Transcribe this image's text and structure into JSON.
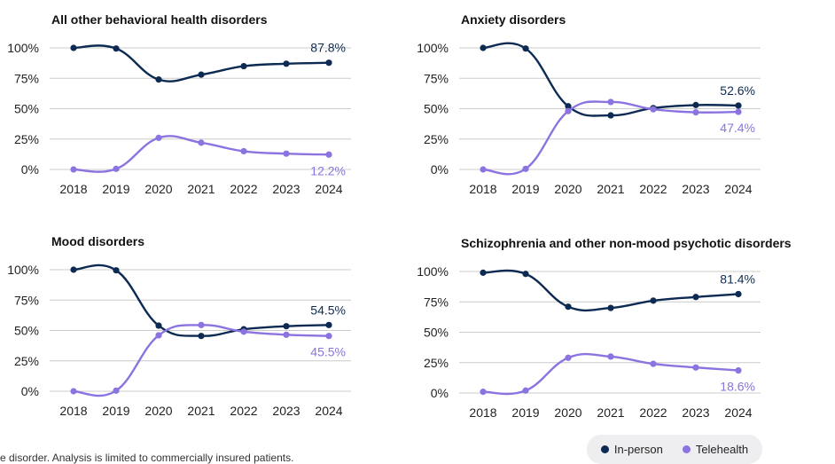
{
  "colors": {
    "in_person": "#0d2b52",
    "telehealth": "#8b73e0",
    "grid": "#cccccc"
  },
  "legend": {
    "in_person": "In-person",
    "telehealth": "Telehealth"
  },
  "footnote": "e disorder. Analysis is limited to commercially insured patients.",
  "chart_data": [
    {
      "type": "line",
      "title": "All other behavioral health disorders",
      "x": [
        "2018",
        "2019",
        "2020",
        "2021",
        "2022",
        "2023",
        "2024"
      ],
      "y_ticks": [
        "100%",
        "75%",
        "50%",
        "25%",
        "0%"
      ],
      "ylim": [
        0,
        100
      ],
      "series": [
        {
          "name": "In-person",
          "values": [
            100,
            99.5,
            74,
            78,
            85,
            87,
            87.8
          ],
          "end_label": "87.8%"
        },
        {
          "name": "Telehealth",
          "values": [
            0,
            0.5,
            26,
            22,
            15,
            13,
            12.2
          ],
          "end_label": "12.2%"
        }
      ]
    },
    {
      "type": "line",
      "title": "Anxiety disorders",
      "x": [
        "2018",
        "2019",
        "2020",
        "2021",
        "2022",
        "2023",
        "2024"
      ],
      "y_ticks": [
        "100%",
        "75%",
        "50%",
        "25%",
        "0%"
      ],
      "ylim": [
        0,
        100
      ],
      "series": [
        {
          "name": "In-person",
          "values": [
            100,
            99.5,
            52,
            44.5,
            50.5,
            53,
            52.6
          ],
          "end_label": "52.6%"
        },
        {
          "name": "Telehealth",
          "values": [
            0,
            0.5,
            48,
            55.5,
            49.5,
            47,
            47.4
          ],
          "end_label": "47.4%"
        }
      ]
    },
    {
      "type": "line",
      "title": "Mood disorders",
      "x": [
        "2018",
        "2019",
        "2020",
        "2021",
        "2022",
        "2023",
        "2024"
      ],
      "y_ticks": [
        "100%",
        "75%",
        "50%",
        "25%",
        "0%"
      ],
      "ylim": [
        0,
        100
      ],
      "series": [
        {
          "name": "In-person",
          "values": [
            100,
            99.5,
            54,
            45.5,
            51,
            53.5,
            54.5
          ],
          "end_label": "54.5%"
        },
        {
          "name": "Telehealth",
          "values": [
            0,
            0.5,
            46,
            54.5,
            49,
            46.5,
            45.5
          ],
          "end_label": "45.5%"
        }
      ]
    },
    {
      "type": "line",
      "title": "Schizophrenia and other non-mood psychotic disorders",
      "x": [
        "2018",
        "2019",
        "2020",
        "2021",
        "2022",
        "2023",
        "2024"
      ],
      "y_ticks": [
        "100%",
        "75%",
        "50%",
        "25%",
        "0%"
      ],
      "ylim": [
        0,
        100
      ],
      "series": [
        {
          "name": "In-person",
          "values": [
            99,
            98,
            71,
            70,
            76,
            79,
            81.4
          ],
          "end_label": "81.4%"
        },
        {
          "name": "Telehealth",
          "values": [
            1,
            2,
            29,
            30,
            24,
            21,
            18.6
          ],
          "end_label": "18.6%"
        }
      ]
    }
  ]
}
